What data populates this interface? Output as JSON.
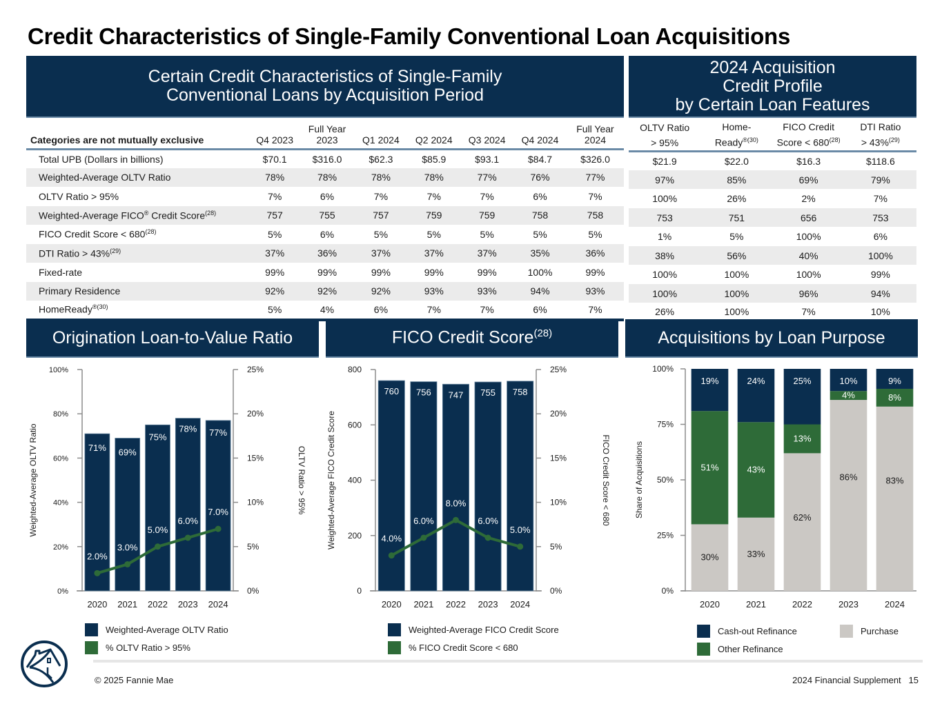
{
  "page": {
    "title": "Credit Characteristics of Single-Family Conventional Loan Acquisitions",
    "copyright": "© 2025 Fannie Mae",
    "supplement": "2024 Financial Supplement",
    "page_number": "15"
  },
  "colors": {
    "navy": "#0a2e4f",
    "green": "#2e6b38",
    "gray": "#cbc8c4",
    "row_shade": "#ebebeb",
    "rule_blue": "#6a8aa6"
  },
  "left_table": {
    "banner_line1": "Certain Credit Characteristics of Single-Family",
    "banner_line2": "Conventional Loans by Acquisition Period",
    "category_header": "Categories are not mutually exclusive",
    "columns": [
      {
        "line1": "",
        "line2": "Q4 2023"
      },
      {
        "line1": "Full Year",
        "line2": "2023"
      },
      {
        "line1": "",
        "line2": "Q1 2024"
      },
      {
        "line1": "",
        "line2": "Q2 2024"
      },
      {
        "line1": "",
        "line2": "Q3 2024"
      },
      {
        "line1": "",
        "line2": "Q4 2024"
      },
      {
        "line1": "Full Year",
        "line2": "2024"
      }
    ],
    "rows": [
      {
        "label": "Total UPB (Dollars in billions)",
        "sup": "",
        "values": [
          "$70.1",
          "$316.0",
          "$62.3",
          "$85.9",
          "$93.1",
          "$84.7",
          "$326.0"
        ]
      },
      {
        "label": "Weighted-Average OLTV Ratio",
        "sup": "",
        "values": [
          "78%",
          "78%",
          "78%",
          "78%",
          "77%",
          "76%",
          "77%"
        ]
      },
      {
        "label": "OLTV Ratio > 95%",
        "sup": "",
        "values": [
          "7%",
          "6%",
          "7%",
          "7%",
          "7%",
          "6%",
          "7%"
        ]
      },
      {
        "label": "Weighted-Average FICO",
        "reg": "®",
        "label_suffix": " Credit Score",
        "sup": "(28)",
        "values": [
          "757",
          "755",
          "757",
          "759",
          "759",
          "758",
          "758"
        ]
      },
      {
        "label": "FICO Credit Score < 680",
        "sup": "(28)",
        "values": [
          "5%",
          "6%",
          "5%",
          "5%",
          "5%",
          "5%",
          "5%"
        ]
      },
      {
        "label": "DTI Ratio > 43%",
        "sup": "(29)",
        "values": [
          "37%",
          "36%",
          "37%",
          "37%",
          "37%",
          "35%",
          "36%"
        ]
      },
      {
        "label": "Fixed-rate",
        "sup": "",
        "values": [
          "99%",
          "99%",
          "99%",
          "99%",
          "99%",
          "100%",
          "99%"
        ]
      },
      {
        "label": "Primary Residence",
        "sup": "",
        "values": [
          "92%",
          "92%",
          "92%",
          "93%",
          "93%",
          "94%",
          "93%"
        ]
      },
      {
        "label": "HomeReady",
        "sup": "®(30)",
        "values": [
          "5%",
          "4%",
          "6%",
          "7%",
          "7%",
          "6%",
          "7%"
        ]
      }
    ]
  },
  "right_table": {
    "banner_line1": "2024 Acquisition",
    "banner_line2": "Credit Profile",
    "banner_line3": "by Certain Loan Features",
    "columns": [
      {
        "line1": "OLTV Ratio",
        "line2": "> 95%",
        "sup": ""
      },
      {
        "line1": "Home-",
        "line2": "Ready",
        "sup": "®(30)"
      },
      {
        "line1": "FICO Credit",
        "line2": "Score < 680",
        "sup": "(28)"
      },
      {
        "line1": "DTI Ratio",
        "line2": "> 43%",
        "sup": "(29)"
      }
    ],
    "rows": [
      [
        "$21.9",
        "$22.0",
        "$16.3",
        "$118.6"
      ],
      [
        "97%",
        "85%",
        "69%",
        "79%"
      ],
      [
        "100%",
        "26%",
        "2%",
        "7%"
      ],
      [
        "753",
        "751",
        "656",
        "753"
      ],
      [
        "1%",
        "5%",
        "100%",
        "6%"
      ],
      [
        "38%",
        "56%",
        "40%",
        "100%"
      ],
      [
        "100%",
        "100%",
        "100%",
        "99%"
      ],
      [
        "100%",
        "100%",
        "96%",
        "94%"
      ],
      [
        "26%",
        "100%",
        "7%",
        "10%"
      ]
    ]
  },
  "chart_data": [
    {
      "id": "oltv",
      "type": "bar",
      "title": "Origination Loan-to-Value Ratio",
      "categories": [
        "2020",
        "2021",
        "2022",
        "2023",
        "2024"
      ],
      "bar_series": {
        "name": "Weighted-Average OLTV Ratio",
        "values": [
          71,
          69,
          75,
          78,
          77
        ],
        "labels": [
          "71%",
          "69%",
          "75%",
          "78%",
          "77%"
        ]
      },
      "line_series": {
        "name": "% OLTV Ratio > 95%",
        "values": [
          2.0,
          3.0,
          5.0,
          6.0,
          7.0
        ],
        "labels": [
          "2.0%",
          "3.0%",
          "5.0%",
          "6.0%",
          "7.0%"
        ]
      },
      "ylabel": "Weighted-Average OLTV Ratio",
      "y2label": "OLTV Ratio > 95%",
      "ylim": [
        0,
        100
      ],
      "y2lim": [
        0,
        25
      ],
      "yticks": [
        "0%",
        "20%",
        "40%",
        "60%",
        "80%",
        "100%"
      ],
      "y2ticks": [
        "0%",
        "5%",
        "10%",
        "15%",
        "20%",
        "25%"
      ],
      "legend_position": "bottom"
    },
    {
      "id": "fico",
      "type": "bar",
      "title": "FICO Credit Score",
      "title_sup": "(28)",
      "categories": [
        "2020",
        "2021",
        "2022",
        "2023",
        "2024"
      ],
      "bar_series": {
        "name": "Weighted-Average FICO Credit Score",
        "values": [
          760,
          756,
          747,
          755,
          758
        ],
        "labels": [
          "760",
          "756",
          "747",
          "755",
          "758"
        ]
      },
      "line_series": {
        "name": "% FICO Credit Score < 680",
        "values": [
          4.0,
          6.0,
          8.0,
          6.0,
          5.0
        ],
        "labels": [
          "4.0%",
          "6.0%",
          "8.0%",
          "6.0%",
          "5.0%"
        ]
      },
      "ylabel": "Weighted-Average FICO Credit Score",
      "y2label": "FICO Credit Score < 680",
      "ylim": [
        0,
        800
      ],
      "y2lim": [
        0,
        25
      ],
      "yticks": [
        "0",
        "200",
        "400",
        "600",
        "800"
      ],
      "y2ticks": [
        "0%",
        "5%",
        "10%",
        "15%",
        "20%",
        "25%"
      ],
      "legend_position": "bottom"
    },
    {
      "id": "purpose",
      "type": "bar",
      "stacked": true,
      "title": "Acquisitions by Loan Purpose",
      "categories": [
        "2020",
        "2021",
        "2022",
        "2023",
        "2024"
      ],
      "series": [
        {
          "name": "Purchase",
          "values": [
            30,
            33,
            62,
            86,
            83
          ],
          "labels": [
            "30%",
            "33%",
            "62%",
            "86%",
            "83%"
          ]
        },
        {
          "name": "Other Refinance",
          "values": [
            51,
            43,
            13,
            4,
            8
          ],
          "labels": [
            "51%",
            "43%",
            "13%",
            "4%",
            "8%"
          ]
        },
        {
          "name": "Cash-out Refinance",
          "values": [
            19,
            24,
            25,
            10,
            9
          ],
          "labels": [
            "19%",
            "24%",
            "25%",
            "10%",
            "9%"
          ]
        }
      ],
      "ylabel": "Share of Acquisitions",
      "ylim": [
        0,
        100
      ],
      "yticks": [
        "0%",
        "25%",
        "50%",
        "75%",
        "100%"
      ],
      "legend_position": "bottom"
    }
  ]
}
